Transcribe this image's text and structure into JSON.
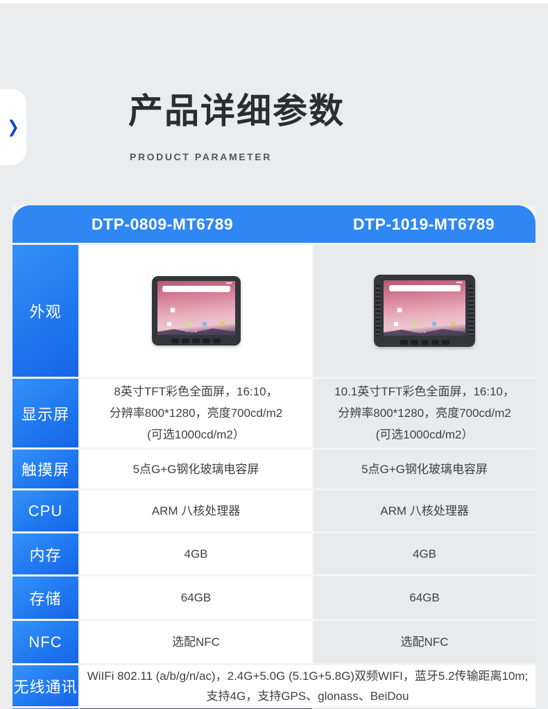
{
  "header": {
    "title": "产品详细参数",
    "subtitle": "PRODUCT PARAMETER",
    "chevron_icon": "❯"
  },
  "colors": {
    "accent_blue_header": "#2e87f3",
    "accent_blue_label_light": "#3392f8",
    "accent_blue_label_dark": "#1565e7",
    "chevron_blue": "#1545d8",
    "page_bg": "#ebecee",
    "col2_bg": "#e9eaec"
  },
  "table": {
    "columns": [
      "DTP-0809-MT6789",
      "DTP-1019-MT6789"
    ],
    "rows": [
      {
        "label": "外观",
        "images": [
          "8-inch-rugged-tablet-front",
          "10.1-inch-rugged-tablet-front"
        ]
      },
      {
        "label": "显示屏",
        "cells": [
          "8英寸TFT彩色全面屏，16:10，\n分辨率800*1280，亮度700cd/m2\n(可选1000cd/m2）",
          "10.1英寸TFT彩色全面屏，16:10，\n分辨率800*1280，亮度700cd/m2\n(可选1000cd/m2）"
        ]
      },
      {
        "label": "触摸屏",
        "cells": [
          "5点G+G钢化玻璃电容屏",
          "5点G+G钢化玻璃电容屏"
        ]
      },
      {
        "label": "CPU",
        "cells": [
          "ARM 八核处理器",
          "ARM 八核处理器"
        ]
      },
      {
        "label": "内存",
        "cells": [
          "4GB",
          "4GB"
        ]
      },
      {
        "label": "存储",
        "cells": [
          "64GB",
          "64GB"
        ]
      },
      {
        "label": "NFC",
        "cells": [
          "选配NFC",
          "选配NFC"
        ]
      },
      {
        "label": "无线通讯",
        "merged": "WiIFi 802.11 (a/b/g/n/ac)，2.4G+5.0G (5.1G+5.8G)双频WIFI，蓝牙5.2传输距离10m;\n支持4G，支持GPS、glonass、BeiDou"
      }
    ]
  }
}
